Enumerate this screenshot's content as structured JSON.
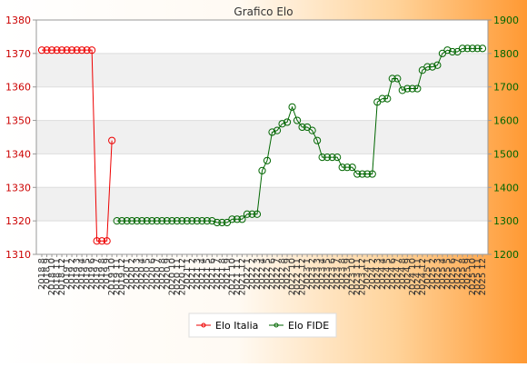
{
  "chart_data": {
    "type": "line",
    "title": "Grafico Elo",
    "x": [
      "2018 8",
      "2018 9",
      "2018 10",
      "2018 11",
      "2018 12",
      "2019 1",
      "2019 2",
      "2019 3",
      "2019 4",
      "2019 5",
      "2019 6",
      "2019 7",
      "2019 8",
      "2019 9",
      "2019 10",
      "2019 11",
      "2019 12",
      "2020 1",
      "2020 2",
      "2020 3",
      "2020 4",
      "2020 5",
      "2020 6",
      "2020 7",
      "2020 8",
      "2020 9",
      "2020 10",
      "2020 11",
      "2020 12",
      "2021 1",
      "2021 2",
      "2021 3",
      "2021 4",
      "2021 5",
      "2021 6",
      "2021 7",
      "2021 8",
      "2021 9",
      "2021 10",
      "2021 11",
      "2021 12",
      "2022 1",
      "2022 2",
      "2022 3",
      "2022 4",
      "2022 5",
      "2022 6",
      "2022 7",
      "2022 8",
      "2022 9",
      "2022 10",
      "2022 11",
      "2022 12",
      "2023 1",
      "2023 2",
      "2023 3",
      "2023 4",
      "2023 5",
      "2023 6",
      "2023 7",
      "2023 8",
      "2023 9",
      "2023 10",
      "2023 11",
      "2023 12",
      "2024 1",
      "2024 2",
      "2024 3",
      "2024 4",
      "2024 5",
      "2024 6",
      "2024 7",
      "2024 8",
      "2024 9",
      "2024 10",
      "2024 11",
      "2024 12",
      "2025 1",
      "2025 2",
      "2025 3",
      "2025 4",
      "2025 5",
      "2025 6",
      "2025 7",
      "2025 8",
      "2025 9",
      "2025 10",
      "2025 11",
      "2025 12"
    ],
    "series": [
      {
        "name": "Elo Italia",
        "axis": "left",
        "color": "#ee0000",
        "values": [
          1371,
          1371,
          1371,
          1371,
          1371,
          1371,
          1371,
          1371,
          1371,
          1371,
          1371,
          1314,
          1314,
          1314,
          1344,
          null,
          null,
          null,
          null,
          null,
          null,
          null,
          null,
          null,
          null,
          null,
          null,
          null,
          null,
          null,
          null,
          null,
          null,
          null,
          null,
          null,
          null,
          null,
          null,
          null,
          null,
          null,
          null,
          null,
          null,
          null,
          null,
          null,
          null,
          null,
          null,
          null,
          null,
          null,
          null,
          null,
          null,
          null,
          null,
          null,
          null,
          null,
          null,
          null,
          null,
          null,
          null,
          null,
          null,
          null,
          null,
          null,
          null,
          null,
          null,
          null,
          null,
          null,
          null,
          null,
          null,
          null,
          null,
          null,
          null,
          null,
          null,
          null,
          null
        ]
      },
      {
        "name": "Elo FIDE",
        "axis": "right",
        "color": "#006600",
        "values": [
          null,
          null,
          null,
          null,
          null,
          null,
          null,
          null,
          null,
          null,
          null,
          null,
          null,
          null,
          null,
          1300,
          1300,
          1300,
          1300,
          1300,
          1300,
          1300,
          1300,
          1300,
          1300,
          1300,
          1300,
          1300,
          1300,
          1300,
          1300,
          1300,
          1300,
          1300,
          1300,
          1295,
          1295,
          1295,
          1305,
          1305,
          1305,
          1320,
          1320,
          1320,
          1450,
          1480,
          1565,
          1570,
          1590,
          1595,
          1640,
          1600,
          1580,
          1580,
          1570,
          1540,
          1490,
          1490,
          1490,
          1490,
          1460,
          1460,
          1460,
          1440,
          1440,
          1440,
          1440,
          1655,
          1665,
          1665,
          1725,
          1725,
          1690,
          1695,
          1695,
          1695,
          1750,
          1760,
          1760,
          1765,
          1800,
          1810,
          1805,
          1805,
          1815,
          1815,
          1815,
          1815,
          1815
        ]
      }
    ],
    "y_left": {
      "ylim": [
        1310,
        1380
      ],
      "ticks": [
        1310,
        1320,
        1330,
        1340,
        1350,
        1360,
        1370,
        1380
      ],
      "color": "#cc0000"
    },
    "y_right": {
      "ylim": [
        1200,
        1900
      ],
      "ticks": [
        1200,
        1300,
        1400,
        1500,
        1600,
        1700,
        1800,
        1900
      ],
      "color": "#006600"
    },
    "grid": true,
    "legend_position": "bottom"
  }
}
